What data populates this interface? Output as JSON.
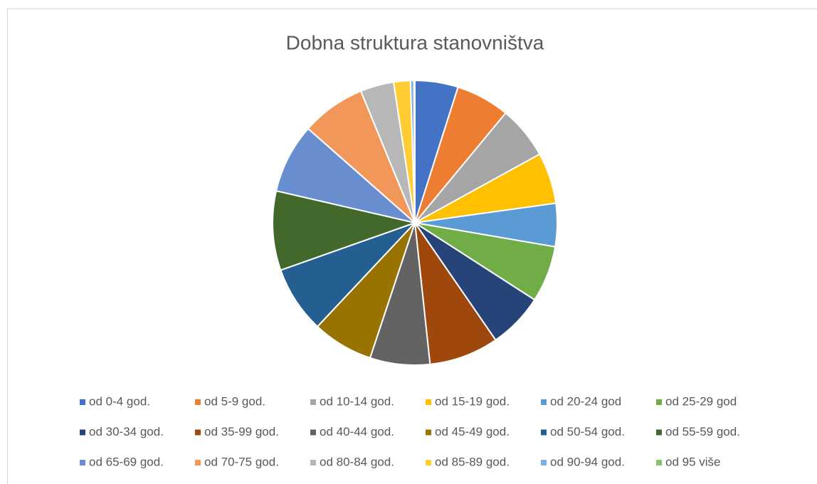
{
  "chart_data": {
    "type": "pie",
    "title": "Dobna struktura stanovništva",
    "categories": [
      "od 0-4 god.",
      "od 5-9 god.",
      "od 10-14 god.",
      "od 15-19 god.",
      "od 20-24 god",
      "od 25-29 god",
      "od 30-34 god.",
      "od 35-99 god.",
      "od 40-44 god.",
      "od 45-49 god.",
      "od 50-54 god.",
      "od 55-59 god.",
      "od 65-69 god.",
      "od 70-75 god.",
      "od 80-84 god.",
      "od 85-89 god.",
      "od 90-94 god.",
      "od 95 više"
    ],
    "values": [
      4.9,
      6.1,
      6.0,
      5.8,
      4.9,
      6.4,
      6.3,
      7.9,
      6.8,
      6.9,
      7.6,
      9.0,
      7.9,
      7.3,
      3.8,
      1.9,
      0.4,
      0.1
    ],
    "colors": [
      "#4472C4",
      "#ED7D31",
      "#A5A5A5",
      "#FFC000",
      "#5B9BD5",
      "#70AD47",
      "#264478",
      "#9E480E",
      "#636363",
      "#997300",
      "#255E91",
      "#43682B",
      "#698ED0",
      "#F1975A",
      "#B7B7B7",
      "#FFCD33",
      "#7CAFDD",
      "#8CC168"
    ],
    "legend": "bottom"
  }
}
